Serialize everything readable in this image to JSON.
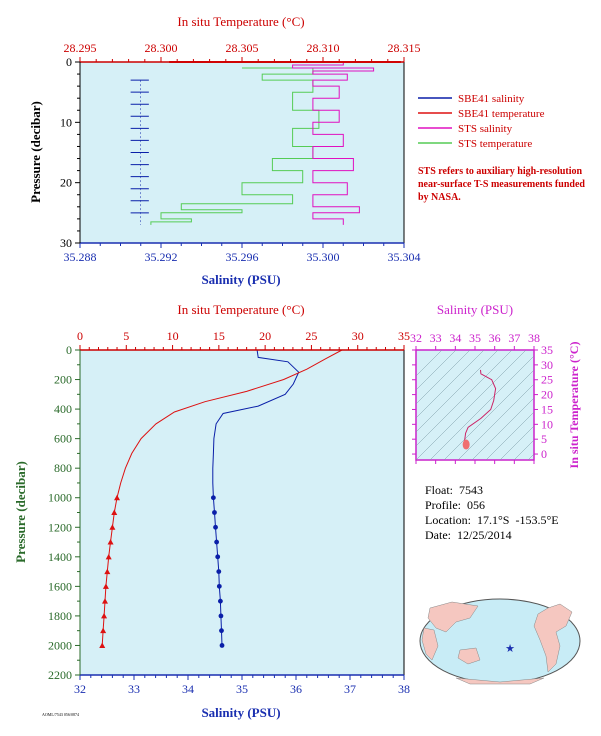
{
  "colors": {
    "background": "#d6f0f7",
    "salinity": "#0a1fa8",
    "temperature": "#dd1111",
    "sts_salinity": "#e010c0",
    "sts_temperature": "#55cc55",
    "axis_red": "#cc0000",
    "axis_blue": "#1a2fb0",
    "axis_green": "#2a6a2a",
    "ts_axis": "#cc22cc"
  },
  "float_info": {
    "float": "Float:  7543",
    "profile": "Profile:  056",
    "location": "Location:  17.1°S  -153.5°E",
    "date": "Date:  12/25/2014"
  },
  "legend": {
    "items": [
      {
        "label": "SBE41 salinity",
        "color": "#0a1fa8"
      },
      {
        "label": "SBE41 temperature",
        "color": "#dd1111"
      },
      {
        "label": "STS salinity",
        "color": "#e010c0"
      },
      {
        "label": "STS temperature",
        "color": "#55cc55"
      }
    ],
    "note": "STS refers to auxiliary high-resolution near-surface T-S measurements funded by NASA."
  },
  "footer_tiny": "AOML/7543 056/0874",
  "chart_data": [
    {
      "type": "line",
      "name_ref": "near-surface",
      "title_top": "In situ Temperature (°C)",
      "xlabel": "Salinity (PSU)",
      "ylabel": "Pressure (decibar)",
      "x_range": [
        35.288,
        35.304
      ],
      "x_ticks": [
        "35.288",
        "35.292",
        "35.296",
        "35.300",
        "35.304"
      ],
      "x2_range": [
        28.295,
        28.315
      ],
      "x2_ticks": [
        "28.295",
        "28.300",
        "28.305",
        "28.310",
        "28.315"
      ],
      "y_range": [
        0,
        30
      ],
      "y_ticks": [
        "0",
        "10",
        "20",
        "30"
      ],
      "series": [
        {
          "name": "SBE41 salinity",
          "axis": "x",
          "points": [
            [
              35.2905,
              3
            ],
            [
              35.2914,
              3
            ],
            [
              35.2905,
              5
            ],
            [
              35.2914,
              5
            ],
            [
              35.2905,
              7
            ],
            [
              35.2914,
              7
            ],
            [
              35.2905,
              9
            ],
            [
              35.2914,
              9
            ],
            [
              35.2905,
              11
            ],
            [
              35.2914,
              11
            ],
            [
              35.2905,
              13
            ],
            [
              35.2914,
              13
            ],
            [
              35.2905,
              15
            ],
            [
              35.2914,
              15
            ],
            [
              35.2905,
              17
            ],
            [
              35.2914,
              17
            ],
            [
              35.2905,
              19
            ],
            [
              35.2914,
              19
            ],
            [
              35.2905,
              21
            ],
            [
              35.2914,
              21
            ],
            [
              35.2905,
              23
            ],
            [
              35.2914,
              23
            ],
            [
              35.2905,
              25
            ],
            [
              35.2914,
              25
            ],
            [
              35.2914,
              27
            ]
          ]
        },
        {
          "name": "SBE41 temperature",
          "axis": "x2",
          "points": [
            [
              28.3005,
              0
            ],
            [
              28.3148,
              0
            ]
          ]
        },
        {
          "name": "STS salinity",
          "axis": "x",
          "points": [
            [
              35.2985,
              0
            ],
            [
              35.301,
              0.5
            ],
            [
              35.2985,
              1
            ],
            [
              35.3025,
              1.5
            ],
            [
              35.2995,
              2
            ],
            [
              35.3012,
              3
            ],
            [
              35.2995,
              4
            ],
            [
              35.3008,
              6
            ],
            [
              35.2995,
              8
            ],
            [
              35.3008,
              10
            ],
            [
              35.2995,
              12
            ],
            [
              35.301,
              14
            ],
            [
              35.2995,
              16
            ],
            [
              35.3015,
              18
            ],
            [
              35.2995,
              20
            ],
            [
              35.3012,
              22
            ],
            [
              35.2995,
              24
            ],
            [
              35.3018,
              25
            ],
            [
              35.2995,
              26
            ],
            [
              35.301,
              27
            ]
          ]
        },
        {
          "name": "STS temperature",
          "axis": "x",
          "points": [
            [
              35.296,
              1
            ],
            [
              35.2995,
              2
            ],
            [
              35.297,
              3
            ],
            [
              35.2995,
              5
            ],
            [
              35.2985,
              8
            ],
            [
              35.2998,
              11
            ],
            [
              35.2985,
              14
            ],
            [
              35.2995,
              16
            ],
            [
              35.2975,
              18
            ],
            [
              35.299,
              20
            ],
            [
              35.296,
              22
            ],
            [
              35.2985,
              23.5
            ],
            [
              35.293,
              24.5
            ],
            [
              35.296,
              25
            ],
            [
              35.292,
              26
            ],
            [
              35.2935,
              26.5
            ],
            [
              35.2915,
              27
            ]
          ]
        }
      ]
    },
    {
      "type": "line",
      "name_ref": "full-profile",
      "title_top": "In situ Temperature (°C)",
      "xlabel": "Salinity (PSU)",
      "ylabel": "Pressure (decibar)",
      "x_range": [
        32,
        38
      ],
      "x_ticks": [
        "32",
        "33",
        "34",
        "35",
        "36",
        "37",
        "38"
      ],
      "x2_range": [
        0,
        35
      ],
      "x2_ticks": [
        "0",
        "5",
        "10",
        "15",
        "20",
        "25",
        "30",
        "35"
      ],
      "y_range": [
        0,
        2200
      ],
      "y_ticks": [
        "0",
        "200",
        "400",
        "600",
        "800",
        "1000",
        "1200",
        "1400",
        "1600",
        "1800",
        "2000",
        "2200"
      ],
      "series": [
        {
          "name": "SBE41 salinity",
          "axis": "x",
          "points": [
            [
              35.28,
              0
            ],
            [
              35.3,
              50
            ],
            [
              35.85,
              80
            ],
            [
              36.05,
              150
            ],
            [
              35.95,
              230
            ],
            [
              35.8,
              300
            ],
            [
              35.3,
              380
            ],
            [
              34.65,
              430
            ],
            [
              34.52,
              500
            ],
            [
              34.48,
              600
            ],
            [
              34.47,
              700
            ],
            [
              34.46,
              800
            ],
            [
              34.46,
              900
            ],
            [
              34.47,
              1000
            ],
            [
              34.49,
              1100
            ],
            [
              34.51,
              1200
            ],
            [
              34.53,
              1300
            ],
            [
              34.55,
              1400
            ],
            [
              34.57,
              1500
            ],
            [
              34.58,
              1600
            ],
            [
              34.6,
              1700
            ],
            [
              34.61,
              1800
            ],
            [
              34.62,
              1900
            ],
            [
              34.63,
              2000
            ]
          ]
        },
        {
          "name": "SBE41 temperature",
          "axis": "x2",
          "points": [
            [
              28.3,
              0
            ],
            [
              26.5,
              60
            ],
            [
              24.5,
              130
            ],
            [
              22,
              200
            ],
            [
              18,
              280
            ],
            [
              13.5,
              350
            ],
            [
              10.2,
              420
            ],
            [
              8.2,
              500
            ],
            [
              6.6,
              600
            ],
            [
              5.6,
              700
            ],
            [
              4.9,
              800
            ],
            [
              4.4,
              900
            ],
            [
              4.0,
              1000
            ],
            [
              3.7,
              1100
            ],
            [
              3.5,
              1200
            ],
            [
              3.3,
              1300
            ],
            [
              3.1,
              1400
            ],
            [
              2.95,
              1500
            ],
            [
              2.8,
              1600
            ],
            [
              2.7,
              1700
            ],
            [
              2.6,
              1800
            ],
            [
              2.5,
              1900
            ],
            [
              2.4,
              2000
            ]
          ]
        }
      ],
      "markers": {
        "blue_circles_from_pressure": 1000,
        "red_triangles_from_pressure": 1000
      }
    },
    {
      "type": "line",
      "name_ref": "ts-diagram",
      "title_top": "Salinity (PSU)",
      "ylabel": "In situ Temperature (°C)",
      "x_range": [
        32,
        38
      ],
      "x_ticks": [
        "32",
        "33",
        "34",
        "35",
        "36",
        "37",
        "38"
      ],
      "y_range": [
        -2,
        35
      ],
      "y_ticks": [
        "0",
        "5",
        "10",
        "15",
        "20",
        "25",
        "30",
        "35"
      ],
      "series": [
        {
          "name": "T-S",
          "points": [
            [
              35.28,
              28.3
            ],
            [
              35.3,
              27
            ],
            [
              35.85,
              25
            ],
            [
              36.05,
              22
            ],
            [
              35.95,
              18
            ],
            [
              35.8,
              15
            ],
            [
              35.3,
              12
            ],
            [
              34.65,
              9
            ],
            [
              34.52,
              7
            ],
            [
              34.48,
              5
            ],
            [
              34.46,
              4.2
            ],
            [
              34.5,
              3.5
            ],
            [
              34.6,
              2.6
            ],
            [
              34.63,
              2.4
            ]
          ]
        }
      ]
    }
  ]
}
